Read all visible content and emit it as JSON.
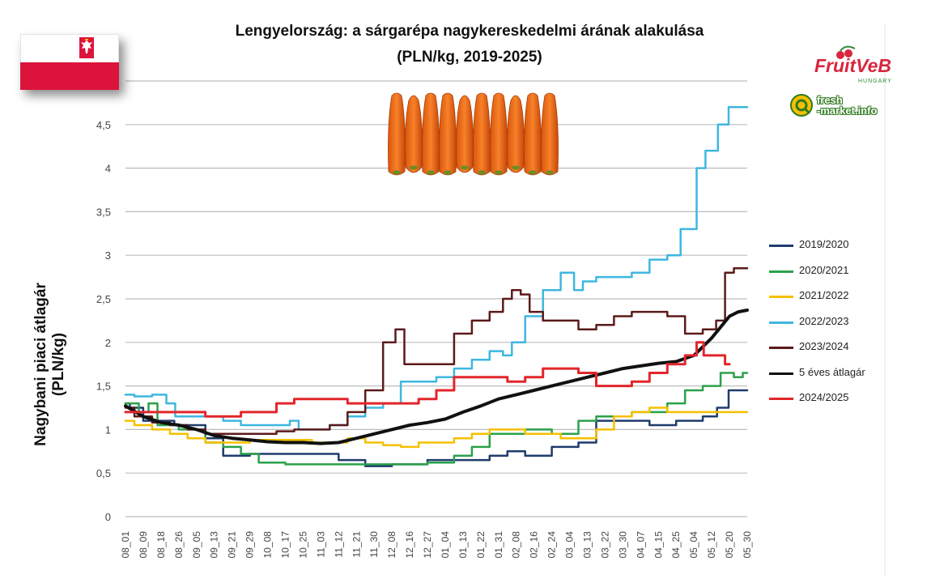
{
  "title": "Lengyelország: a sárgarépa nagykereskedelmi árának alakulása",
  "subtitle": "(PLN/kg, 2019-2025)",
  "ylabel_line1": "Nagybani piaci átlagár",
  "ylabel_line2": "(PLN/kg)",
  "logos": {
    "fruitveb": "FruitVeB",
    "fruitveb_sub": "HUNGARY",
    "freshmarket_line1": "fresh",
    "freshmarket_line2": "-market.info"
  },
  "chart_data": {
    "type": "line",
    "title": "Lengyelország: a sárgarépa nagykereskedelmi árának alakulása",
    "subtitle": "(PLN/kg, 2019-2025)",
    "ylabel": "Nagybani piaci átlagár (PLN/kg)",
    "ylim": [
      0,
      5
    ],
    "yticks": [
      0,
      0.5,
      1,
      1.5,
      2,
      2.5,
      3,
      3.5,
      4,
      4.5
    ],
    "ytick_labels": [
      "0",
      "0,5",
      "1",
      "1,5",
      "2",
      "2,5",
      "3",
      "3,5",
      "4",
      "4,5"
    ],
    "grid": true,
    "legend_position": "right",
    "x_labels": [
      "08_01",
      "08_09",
      "08_18",
      "08_26",
      "09_05",
      "09_13",
      "09_21",
      "09_29",
      "10_08",
      "10_17",
      "10_25",
      "11_03",
      "11_12",
      "11_21",
      "11_30",
      "12_08",
      "12_16",
      "12_27",
      "01_04",
      "01_13",
      "01_22",
      "01_31",
      "02_08",
      "02_16",
      "02_24",
      "03_04",
      "03_13",
      "03_22",
      "03_30",
      "04_07",
      "04_15",
      "04_25",
      "05_04",
      "05_12",
      "05_20",
      "05_30"
    ],
    "series": [
      {
        "name": "2019/2020",
        "color": "#1f3b6e",
        "width": 2.5,
        "points": [
          [
            0,
            1.3
          ],
          [
            0.5,
            1.25
          ],
          [
            1.5,
            1.1
          ],
          [
            4,
            1.05
          ],
          [
            5,
            0.9
          ],
          [
            6,
            0.7
          ],
          [
            8,
            0.72
          ],
          [
            11,
            0.72
          ],
          [
            13,
            0.65
          ],
          [
            14,
            0.58
          ],
          [
            16,
            0.6
          ],
          [
            18,
            0.65
          ],
          [
            19,
            0.65
          ],
          [
            20,
            0.65
          ],
          [
            21,
            0.7
          ],
          [
            22,
            0.75
          ],
          [
            23,
            0.7
          ],
          [
            25,
            0.8
          ],
          [
            26,
            0.85
          ],
          [
            27,
            1.1
          ],
          [
            29,
            1.1
          ],
          [
            30,
            1.05
          ],
          [
            32,
            1.1
          ],
          [
            33,
            1.15
          ],
          [
            33.6,
            1.25
          ],
          [
            34.3,
            1.45
          ],
          [
            35,
            1.45
          ]
        ]
      },
      {
        "name": "2020/2021",
        "color": "#2aa14a",
        "width": 2.5,
        "points": [
          [
            0,
            1.3
          ],
          [
            0.5,
            1.3
          ],
          [
            1,
            1.2
          ],
          [
            1.6,
            1.3
          ],
          [
            2,
            1.05
          ],
          [
            4,
            1.0
          ],
          [
            5,
            0.85
          ],
          [
            6,
            0.8
          ],
          [
            7,
            0.72
          ],
          [
            8,
            0.62
          ],
          [
            10,
            0.6
          ],
          [
            12,
            0.6
          ],
          [
            13,
            0.6
          ],
          [
            16,
            0.6
          ],
          [
            18,
            0.62
          ],
          [
            19,
            0.7
          ],
          [
            20,
            0.8
          ],
          [
            21,
            0.95
          ],
          [
            22,
            0.95
          ],
          [
            23,
            1.0
          ],
          [
            25,
            0.95
          ],
          [
            26,
            1.1
          ],
          [
            27,
            1.15
          ],
          [
            28,
            1.15
          ],
          [
            29,
            1.2
          ],
          [
            30,
            1.2
          ],
          [
            31,
            1.3
          ],
          [
            32,
            1.45
          ],
          [
            33,
            1.5
          ],
          [
            34,
            1.65
          ],
          [
            34.5,
            1.6
          ],
          [
            35,
            1.65
          ]
        ]
      },
      {
        "name": "2021/2022",
        "color": "#f5c000",
        "width": 2.5,
        "points": [
          [
            0,
            1.1
          ],
          [
            1,
            1.05
          ],
          [
            2,
            1.0
          ],
          [
            3,
            0.95
          ],
          [
            4,
            0.9
          ],
          [
            5,
            0.85
          ],
          [
            6,
            0.85
          ],
          [
            8,
            0.88
          ],
          [
            10,
            0.88
          ],
          [
            11,
            0.85
          ],
          [
            12,
            0.85
          ],
          [
            13,
            0.9
          ],
          [
            14,
            0.85
          ],
          [
            15,
            0.82
          ],
          [
            16,
            0.8
          ],
          [
            17,
            0.85
          ],
          [
            18,
            0.85
          ],
          [
            19,
            0.9
          ],
          [
            20,
            0.95
          ],
          [
            21,
            1.0
          ],
          [
            22,
            1.0
          ],
          [
            23,
            0.95
          ],
          [
            24,
            0.95
          ],
          [
            25,
            0.9
          ],
          [
            26,
            0.9
          ],
          [
            27,
            1.0
          ],
          [
            28,
            1.15
          ],
          [
            29,
            1.2
          ],
          [
            30,
            1.25
          ],
          [
            31,
            1.2
          ],
          [
            32,
            1.2
          ],
          [
            33,
            1.2
          ],
          [
            35,
            1.2
          ]
        ]
      },
      {
        "name": "2022/2023",
        "color": "#3eb7e0",
        "width": 2.5,
        "points": [
          [
            0,
            1.4
          ],
          [
            1,
            1.38
          ],
          [
            2,
            1.4
          ],
          [
            2.6,
            1.3
          ],
          [
            3,
            1.15
          ],
          [
            4,
            1.15
          ],
          [
            5,
            1.15
          ],
          [
            6,
            1.1
          ],
          [
            7,
            1.05
          ],
          [
            8,
            1.05
          ],
          [
            9,
            1.05
          ],
          [
            9.5,
            1.1
          ],
          [
            10,
            1.0
          ],
          [
            11,
            1.0
          ],
          [
            12,
            1.05
          ],
          [
            13,
            1.15
          ],
          [
            14,
            1.25
          ],
          [
            15,
            1.3
          ],
          [
            16,
            1.55
          ],
          [
            17,
            1.55
          ],
          [
            18,
            1.6
          ],
          [
            19,
            1.7
          ],
          [
            20,
            1.8
          ],
          [
            21,
            1.9
          ],
          [
            21.5,
            1.85
          ],
          [
            22,
            2.0
          ],
          [
            23,
            2.3
          ],
          [
            24,
            2.6
          ],
          [
            25,
            2.8
          ],
          [
            25.5,
            2.6
          ],
          [
            26,
            2.7
          ],
          [
            27,
            2.75
          ],
          [
            28,
            2.75
          ],
          [
            29,
            2.8
          ],
          [
            30,
            2.95
          ],
          [
            31,
            3.0
          ],
          [
            31.5,
            3.3
          ],
          [
            32,
            3.3
          ],
          [
            32.3,
            4.0
          ],
          [
            33,
            4.2
          ],
          [
            33.7,
            4.5
          ],
          [
            34.2,
            4.7
          ],
          [
            35,
            4.7
          ]
        ]
      },
      {
        "name": "2023/2024",
        "color": "#5c1a1a",
        "width": 2.5,
        "points": [
          [
            0,
            1.25
          ],
          [
            1,
            1.15
          ],
          [
            2,
            1.08
          ],
          [
            3,
            1.05
          ],
          [
            4,
            1.0
          ],
          [
            5,
            0.95
          ],
          [
            6,
            0.95
          ],
          [
            7,
            0.95
          ],
          [
            8,
            0.95
          ],
          [
            9,
            0.98
          ],
          [
            10,
            1.0
          ],
          [
            11,
            1.0
          ],
          [
            12,
            1.05
          ],
          [
            13,
            1.2
          ],
          [
            14,
            1.45
          ],
          [
            15,
            2.0
          ],
          [
            15.4,
            2.15
          ],
          [
            16,
            1.75
          ],
          [
            17,
            1.75
          ],
          [
            18,
            1.75
          ],
          [
            19,
            2.1
          ],
          [
            20,
            2.25
          ],
          [
            21,
            2.35
          ],
          [
            21.5,
            2.5
          ],
          [
            22,
            2.6
          ],
          [
            22.5,
            2.55
          ],
          [
            23,
            2.35
          ],
          [
            24,
            2.25
          ],
          [
            25,
            2.25
          ],
          [
            26,
            2.15
          ],
          [
            27,
            2.2
          ],
          [
            28,
            2.3
          ],
          [
            29,
            2.35
          ],
          [
            30,
            2.35
          ],
          [
            31,
            2.3
          ],
          [
            32,
            2.1
          ],
          [
            33,
            2.15
          ],
          [
            33.5,
            2.25
          ],
          [
            34,
            2.8
          ],
          [
            34.5,
            2.85
          ],
          [
            35,
            2.85
          ]
        ]
      },
      {
        "name": "5 éves átlagár",
        "color": "#111111",
        "width": 4,
        "points": [
          [
            0,
            1.27
          ],
          [
            1,
            1.15
          ],
          [
            2,
            1.08
          ],
          [
            3,
            1.05
          ],
          [
            4,
            1.0
          ],
          [
            5,
            0.93
          ],
          [
            6,
            0.9
          ],
          [
            7,
            0.88
          ],
          [
            8,
            0.86
          ],
          [
            9,
            0.85
          ],
          [
            10,
            0.85
          ],
          [
            11,
            0.84
          ],
          [
            12,
            0.85
          ],
          [
            13,
            0.9
          ],
          [
            14,
            0.95
          ],
          [
            15,
            1.0
          ],
          [
            16,
            1.05
          ],
          [
            17,
            1.08
          ],
          [
            18,
            1.12
          ],
          [
            19,
            1.2
          ],
          [
            20,
            1.27
          ],
          [
            21,
            1.35
          ],
          [
            22,
            1.4
          ],
          [
            23,
            1.45
          ],
          [
            24,
            1.5
          ],
          [
            25,
            1.55
          ],
          [
            26,
            1.6
          ],
          [
            27,
            1.65
          ],
          [
            28,
            1.7
          ],
          [
            29,
            1.73
          ],
          [
            30,
            1.76
          ],
          [
            31,
            1.78
          ],
          [
            32,
            1.85
          ],
          [
            33,
            2.05
          ],
          [
            34,
            2.3
          ],
          [
            34.5,
            2.35
          ],
          [
            35,
            2.37
          ]
        ]
      },
      {
        "name": "2024/2025",
        "color": "#e2262b",
        "width": 3,
        "points": [
          [
            0,
            1.2
          ],
          [
            1,
            1.2
          ],
          [
            2,
            1.2
          ],
          [
            3,
            1.2
          ],
          [
            4,
            1.2
          ],
          [
            5,
            1.15
          ],
          [
            6,
            1.15
          ],
          [
            7,
            1.2
          ],
          [
            8,
            1.2
          ],
          [
            9,
            1.3
          ],
          [
            10,
            1.35
          ],
          [
            11,
            1.35
          ],
          [
            12,
            1.35
          ],
          [
            13,
            1.3
          ],
          [
            14,
            1.3
          ],
          [
            15,
            1.3
          ],
          [
            16,
            1.3
          ],
          [
            17,
            1.35
          ],
          [
            18,
            1.45
          ],
          [
            19,
            1.6
          ],
          [
            20,
            1.6
          ],
          [
            21,
            1.6
          ],
          [
            22,
            1.55
          ],
          [
            23,
            1.6
          ],
          [
            24,
            1.7
          ],
          [
            25,
            1.7
          ],
          [
            26,
            1.65
          ],
          [
            27,
            1.5
          ],
          [
            28,
            1.5
          ],
          [
            29,
            1.55
          ],
          [
            30,
            1.65
          ],
          [
            31,
            1.75
          ],
          [
            32,
            1.85
          ],
          [
            32.3,
            2.0
          ],
          [
            32.8,
            1.85
          ],
          [
            33.5,
            1.85
          ],
          [
            34,
            1.75
          ]
        ]
      }
    ]
  }
}
